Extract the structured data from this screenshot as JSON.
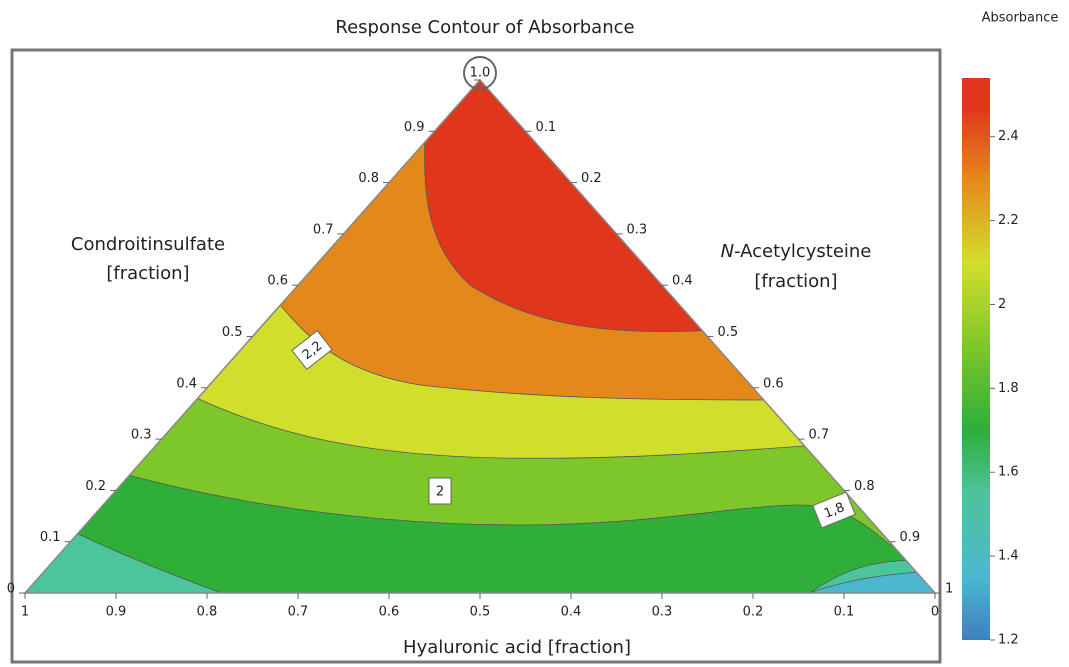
{
  "chart_data": {
    "type": "ternary_contour",
    "title": "Response Contour of Absorbance",
    "left_axis_label": [
      "Condroitinsulfate",
      "[fraction]"
    ],
    "right_axis_label": {
      "italic": "N",
      "rest": "-Acetylcysteine",
      "line2": "[fraction]"
    },
    "bottom_axis_label": "Hyaluronic acid [fraction]",
    "left_ticks": [
      0,
      0.1,
      0.2,
      0.3,
      0.4,
      0.5,
      0.6,
      0.7,
      0.8,
      0.9,
      {
        "value": 1,
        "label": "1.0"
      }
    ],
    "right_ticks": [
      0.1,
      0.2,
      0.3,
      0.4,
      0.5,
      0.6,
      0.7,
      0.8,
      0.9,
      1
    ],
    "bottom_ticks": [
      1,
      0.9,
      0.8,
      0.7,
      0.6,
      0.5,
      0.4,
      0.3,
      0.2,
      0.1,
      0
    ],
    "levels": [
      1.5,
      1.6,
      1.8,
      2.0,
      2.2,
      2.4
    ],
    "colors": [
      "#4cb8cf",
      "#4cc49c",
      "#2fae3a",
      "#7ec72a",
      "#d2de2c",
      "#e5881c",
      "#e0361c"
    ],
    "contour_labels": [
      2.2,
      2,
      1.8
    ],
    "value_labels": [
      "2,2",
      "2",
      "1,8"
    ],
    "colorbar_label": "Absorbance",
    "clim": [
      1.2,
      2.54
    ],
    "colorbar_ticks": [
      1.2,
      1.4,
      1.6,
      1.8,
      2,
      2.2,
      2.4
    ]
  }
}
